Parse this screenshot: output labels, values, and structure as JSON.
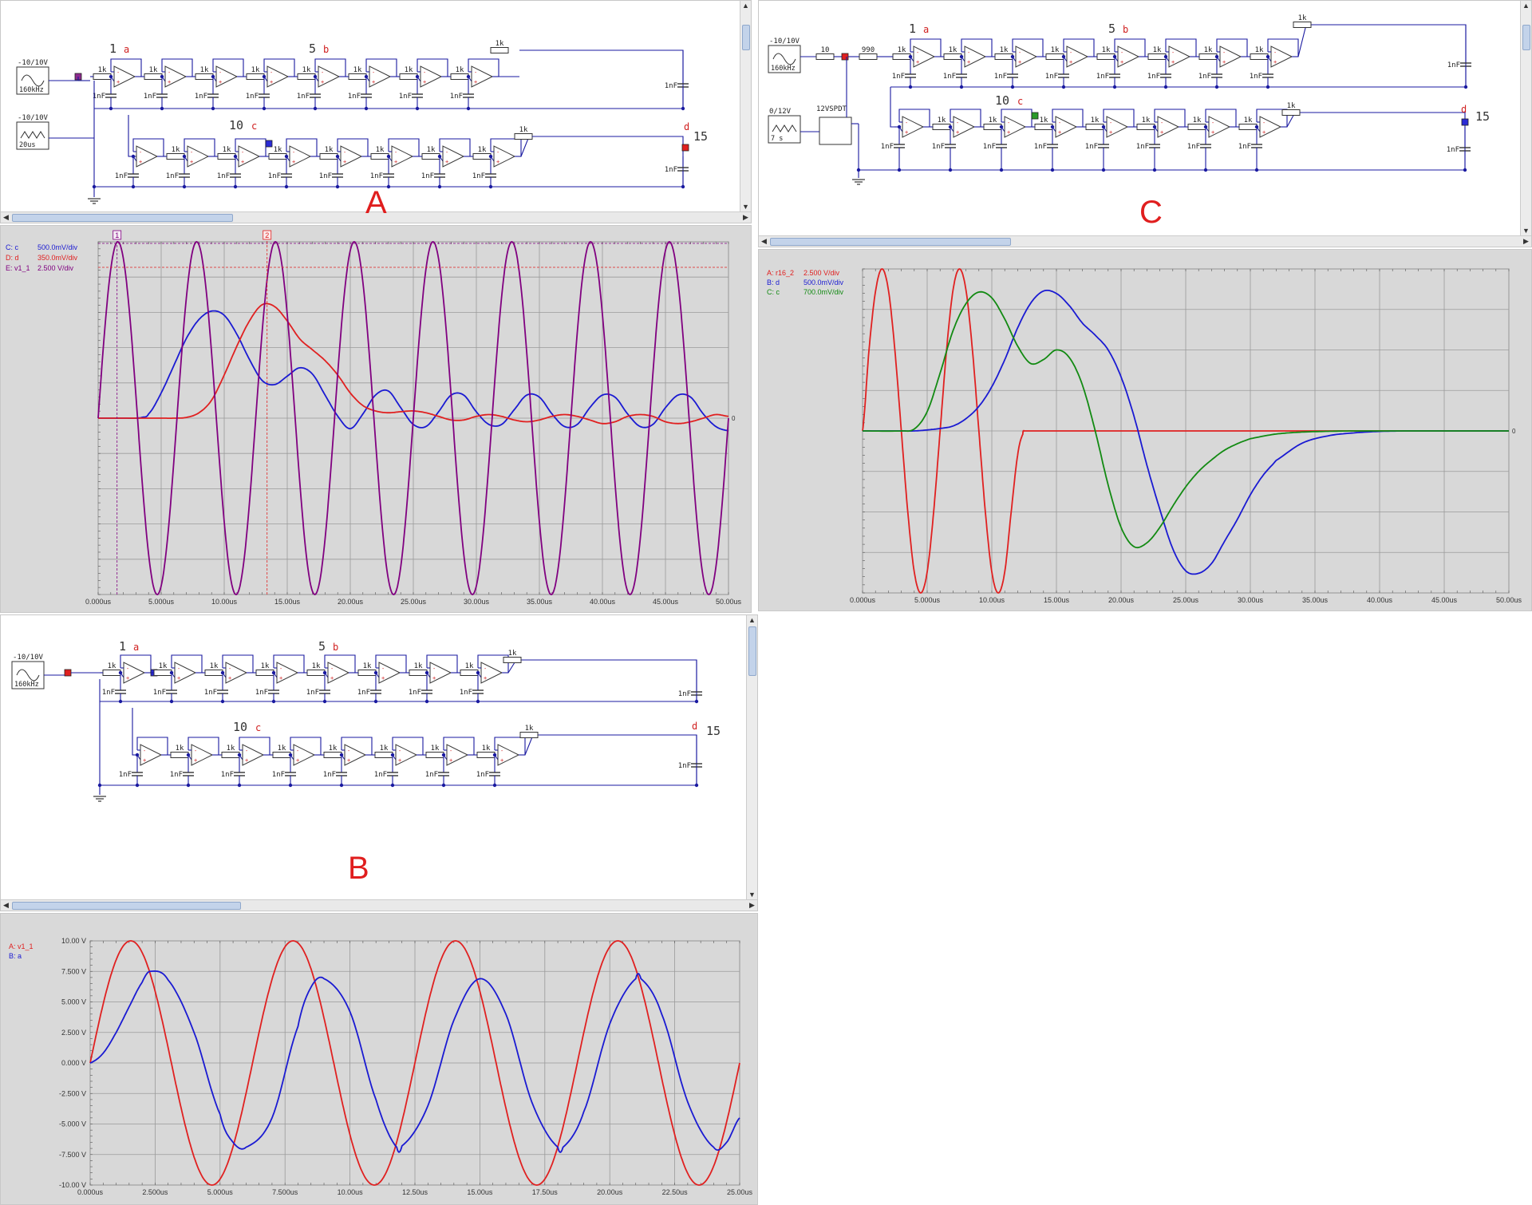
{
  "section_labels": [
    "A",
    "B",
    "C"
  ],
  "circuit": {
    "resistor_label": "1k",
    "cap_label": "1nF",
    "stage_markers": [
      {
        "num": "1",
        "probe": "a"
      },
      {
        "num": "5",
        "probe": "b"
      },
      {
        "num": "10",
        "probe": "c"
      },
      {
        "num": "15",
        "probe": "d"
      }
    ],
    "source_sine_amp": "-10/10V",
    "source_sine_freq": "160kHz",
    "source_tri_amp": "-10/10V",
    "source_tri_period": "20us",
    "source_tri_amp_c": "0/12V",
    "source_tri_period_c": "7 s",
    "res_c_1": "10",
    "res_c_2": "990",
    "switch_label": "12VSPDT"
  },
  "colors": {
    "red": "#e02020",
    "blue": "#1a1ad2",
    "purple": "#800080",
    "green": "#128a12",
    "wire": "#1a1aa0"
  },
  "plot_a": {
    "legend": [
      {
        "name": "C: c",
        "scale": "500.0mV/div",
        "color": "#1a1ad2"
      },
      {
        "name": "D: d",
        "scale": "350.0mV/div",
        "color": "#e02020"
      },
      {
        "name": "E: v1_1",
        "scale": "2.500 V/div",
        "color": "#800080"
      }
    ],
    "cursor_labels": [
      "1",
      "2"
    ],
    "zero_label": "0"
  },
  "plot_b": {
    "legend": [
      {
        "name": "A: v1_1",
        "color": "#e02020"
      },
      {
        "name": "B: a",
        "color": "#1a1ad2"
      }
    ]
  },
  "plot_c": {
    "legend": [
      {
        "name": "A: r16_2",
        "scale": "2.500 V/div",
        "color": "#e02020"
      },
      {
        "name": "B: d",
        "scale": "500.0mV/div",
        "color": "#1a1ad2"
      },
      {
        "name": "C: c",
        "scale": "700.0mV/div",
        "color": "#128a12"
      }
    ],
    "zero_label": "0"
  },
  "chart_data": [
    {
      "type": "line",
      "x_unit": "us",
      "xlim": [
        0,
        50
      ],
      "x_ticks": [
        "0.000us",
        "5.000us",
        "10.00us",
        "15.00us",
        "20.00us",
        "25.00us",
        "30.00us",
        "35.00us",
        "40.00us",
        "45.00us",
        "50.00us"
      ],
      "y_ticks": [],
      "grid": true,
      "legend_position": "top-left",
      "series": [
        {
          "name": "C: c",
          "color": "#1a1ad2",
          "x": [
            0,
            1,
            2,
            3,
            3.5,
            4,
            5,
            6,
            7,
            8,
            9,
            10,
            11,
            12,
            13,
            14,
            15,
            16,
            17,
            18,
            19,
            20,
            21,
            22,
            23,
            24,
            25,
            26,
            27,
            28,
            29,
            30,
            31,
            32,
            33,
            34,
            35,
            36,
            37,
            38,
            39,
            40,
            41,
            42,
            43,
            44,
            45,
            46,
            47,
            48,
            49,
            50
          ],
          "y": [
            0,
            0,
            0,
            0,
            0.02,
            0.1,
            0.6,
            1.25,
            1.9,
            2.35,
            2.55,
            2.45,
            2.0,
            1.4,
            0.9,
            0.8,
            1.0,
            1.2,
            1.05,
            0.55,
            0.05,
            -0.25,
            0.1,
            0.55,
            0.65,
            0.25,
            -0.15,
            -0.2,
            0.15,
            0.55,
            0.55,
            0.15,
            -0.15,
            -0.15,
            0.2,
            0.55,
            0.5,
            0.1,
            -0.2,
            -0.15,
            0.25,
            0.55,
            0.5,
            0.1,
            -0.2,
            -0.15,
            0.25,
            0.55,
            0.5,
            0.1,
            -0.2,
            -0.3
          ]
        },
        {
          "name": "D: d",
          "color": "#e02020",
          "x": [
            0,
            1,
            2,
            3,
            4,
            5,
            6,
            7,
            8,
            9,
            10,
            11,
            12,
            13,
            14,
            15,
            16,
            17,
            18,
            19,
            20,
            21,
            22,
            23,
            24,
            25,
            26,
            27,
            28,
            29,
            30,
            31,
            32,
            33,
            34,
            35,
            36,
            37,
            38,
            39,
            40,
            41,
            42,
            43,
            44,
            45,
            46,
            47,
            48,
            49,
            50
          ],
          "y": [
            0,
            0,
            0,
            0,
            0,
            0,
            0,
            0.02,
            0.15,
            0.5,
            1.2,
            2.0,
            2.7,
            3.15,
            3.1,
            2.7,
            2.2,
            1.9,
            1.6,
            1.2,
            0.7,
            0.35,
            0.2,
            0.15,
            0.18,
            0.2,
            0.15,
            0.05,
            -0.05,
            -0.05,
            0.05,
            0.1,
            0.05,
            -0.05,
            -0.1,
            -0.05,
            0.05,
            0.1,
            0.05,
            -0.05,
            -0.15,
            -0.1,
            0.05,
            0.1,
            0.05,
            -0.1,
            -0.15,
            -0.1,
            0.0,
            0.1,
            0.05
          ]
        },
        {
          "name": "E: v1_1",
          "color": "#800080",
          "x": [
            0,
            50
          ],
          "y": [
            0,
            0
          ],
          "waveform": "sine",
          "amplitude_v": 10,
          "frequency_khz": 160
        }
      ]
    },
    {
      "type": "line",
      "x_unit": "us",
      "xlim": [
        0,
        25
      ],
      "ylim": [
        -10,
        10
      ],
      "x_ticks": [
        "0.000us",
        "2.500us",
        "5.000us",
        "7.500us",
        "10.00us",
        "12.50us",
        "15.00us",
        "17.50us",
        "20.00us",
        "22.50us",
        "25.00us"
      ],
      "y_ticks": [
        "10.00 V",
        "7.500 V",
        "5.000 V",
        "2.500 V",
        "0.000 V",
        "-2.500 V",
        "-5.000 V",
        "-7.500 V",
        "-10.00 V"
      ],
      "grid": true,
      "legend_position": "top-left",
      "series": [
        {
          "name": "A: v1_1",
          "color": "#e02020",
          "waveform": "sine",
          "amplitude_v": 10,
          "frequency_khz": 160,
          "x": [
            0,
            1.5625,
            3.125,
            4.6875,
            6.25,
            7.8125,
            9.375,
            10.9375,
            12.5,
            14.0625,
            15.625,
            17.1875,
            18.75,
            20.3125,
            21.875,
            23.4375,
            25
          ],
          "y": [
            0,
            10,
            0,
            -10,
            0,
            10,
            0,
            -10,
            0,
            10,
            0,
            -10,
            0,
            10,
            0,
            -10,
            0
          ]
        },
        {
          "name": "B: a",
          "color": "#1a1ad2",
          "x": [
            0,
            0.5,
            1,
            1.5,
            2,
            2.3,
            3,
            4,
            5,
            5.5,
            6,
            7,
            8,
            8.5,
            9,
            10,
            11,
            11.8,
            12,
            13,
            14,
            15,
            16,
            17,
            18,
            18.2,
            19,
            20,
            21,
            21.2,
            22,
            23,
            24,
            24.5,
            25
          ],
          "y": [
            0,
            0.8,
            2.5,
            4.6,
            6.6,
            7.5,
            6.8,
            2.5,
            -4.2,
            -6.5,
            -6.9,
            -4.5,
            3.0,
            6.2,
            6.9,
            4.2,
            -3.0,
            -6.9,
            -6.8,
            -3.5,
            3.5,
            6.9,
            4.0,
            -3.2,
            -6.9,
            -6.9,
            -4.0,
            3.2,
            6.9,
            6.9,
            4.0,
            -3.2,
            -6.9,
            -6.5,
            -4.5
          ]
        }
      ]
    },
    {
      "type": "line",
      "x_unit": "us",
      "xlim": [
        0,
        50
      ],
      "x_ticks": [
        "0.000us",
        "5.000us",
        "10.00us",
        "15.00us",
        "20.00us",
        "25.00us",
        "30.00us",
        "35.00us",
        "40.00us",
        "45.00us",
        "50.00us"
      ],
      "y_ticks": [],
      "grid": true,
      "legend_position": "top-left",
      "series": [
        {
          "name": "A: r16_2",
          "color": "#e02020",
          "x": [
            0,
            0.5,
            1,
            1.5,
            2,
            2.5,
            3,
            3.5,
            4,
            4.5,
            5,
            5.5,
            6,
            6.5,
            7,
            7.5,
            8,
            8.5,
            9,
            9.5,
            10,
            10.5,
            11,
            11.5,
            12,
            12.4,
            12.45,
            12.5,
            13,
            20,
            30,
            35,
            50
          ],
          "y": [
            0,
            5,
            8.6,
            10,
            8.7,
            5,
            0,
            -5,
            -8.7,
            -10,
            -8.7,
            -5,
            0,
            5,
            8.7,
            10,
            8.7,
            5,
            0,
            -5,
            -8.7,
            -10,
            -8.7,
            -5,
            -1.5,
            -0.2,
            0,
            0,
            0,
            0,
            0,
            0,
            0
          ]
        },
        {
          "name": "B: d",
          "color": "#1a1ad2",
          "x": [
            0,
            3,
            4,
            5,
            6,
            7,
            8,
            9,
            10,
            11,
            12,
            13,
            14,
            15,
            16,
            17,
            18,
            19,
            20,
            21,
            22,
            23,
            24,
            25,
            26,
            27,
            28,
            29,
            30,
            31,
            32,
            34,
            36,
            38,
            40,
            42,
            50
          ],
          "y": [
            0,
            0,
            0,
            0.02,
            0.05,
            0.1,
            0.25,
            0.5,
            0.9,
            1.45,
            2.1,
            2.6,
            2.85,
            2.8,
            2.55,
            2.2,
            1.95,
            1.65,
            1.1,
            0.3,
            -0.7,
            -1.6,
            -2.4,
            -2.85,
            -2.9,
            -2.7,
            -2.25,
            -1.8,
            -1.3,
            -0.9,
            -0.6,
            -0.25,
            -0.1,
            -0.04,
            -0.01,
            0,
            0
          ]
        },
        {
          "name": "C: c",
          "color": "#128a12",
          "x": [
            0,
            3,
            4,
            5,
            6,
            7,
            8,
            9,
            10,
            11,
            12,
            13,
            14,
            15,
            16,
            17,
            18,
            19,
            20,
            21,
            22,
            23,
            24,
            25,
            26,
            27,
            28,
            29,
            30,
            32,
            34,
            36,
            38,
            40,
            42,
            50
          ],
          "y": [
            0,
            0,
            0.05,
            0.5,
            1.5,
            2.6,
            3.3,
            3.6,
            3.45,
            2.9,
            2.2,
            1.75,
            1.85,
            2.1,
            1.9,
            1.2,
            0,
            -1.4,
            -2.5,
            -3.0,
            -2.9,
            -2.5,
            -1.95,
            -1.45,
            -1.05,
            -0.75,
            -0.5,
            -0.33,
            -0.2,
            -0.08,
            -0.03,
            -0.01,
            0,
            0,
            0,
            0
          ]
        }
      ]
    }
  ]
}
